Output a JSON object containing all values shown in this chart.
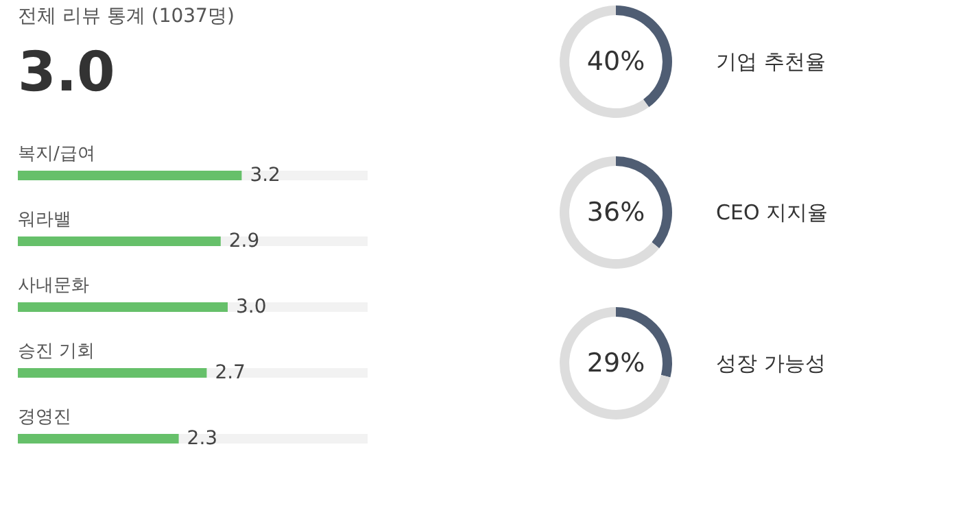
{
  "chart_data": [
    {
      "type": "other",
      "title": "전체 리뷰 통계 (1037명)",
      "annotations": [
        "3.0"
      ]
    },
    {
      "type": "bar",
      "orientation": "horizontal",
      "categories": [
        "복지/급여",
        "워라밸",
        "사내문화",
        "승진 기회",
        "경영진"
      ],
      "values": [
        3.2,
        2.9,
        3.0,
        2.7,
        2.3
      ],
      "color": "#66c06a",
      "xlim": [
        0,
        5
      ],
      "value_labels": [
        "3.2",
        "2.9",
        "3.0",
        "2.7",
        "2.3"
      ],
      "tick_labels": false,
      "legend": false
    },
    {
      "type": "donut",
      "title": "기업 추천율",
      "categories": [
        null,
        null
      ],
      "values": [
        40,
        60
      ],
      "colors": [
        "#4f5d73",
        "#dddddd"
      ],
      "annotations": [
        "40%"
      ],
      "legend": false
    },
    {
      "type": "donut",
      "title": "CEO 지지율",
      "categories": [
        null,
        null
      ],
      "values": [
        36,
        64
      ],
      "colors": [
        "#4f5d73",
        "#dddddd"
      ],
      "annotations": [
        "36%"
      ],
      "legend": false
    },
    {
      "type": "donut",
      "title": "성장 가능성",
      "categories": [
        null,
        null
      ],
      "values": [
        29,
        71
      ],
      "colors": [
        "#4f5d73",
        "#dddddd"
      ],
      "annotations": [
        "29%"
      ],
      "legend": false
    }
  ]
}
